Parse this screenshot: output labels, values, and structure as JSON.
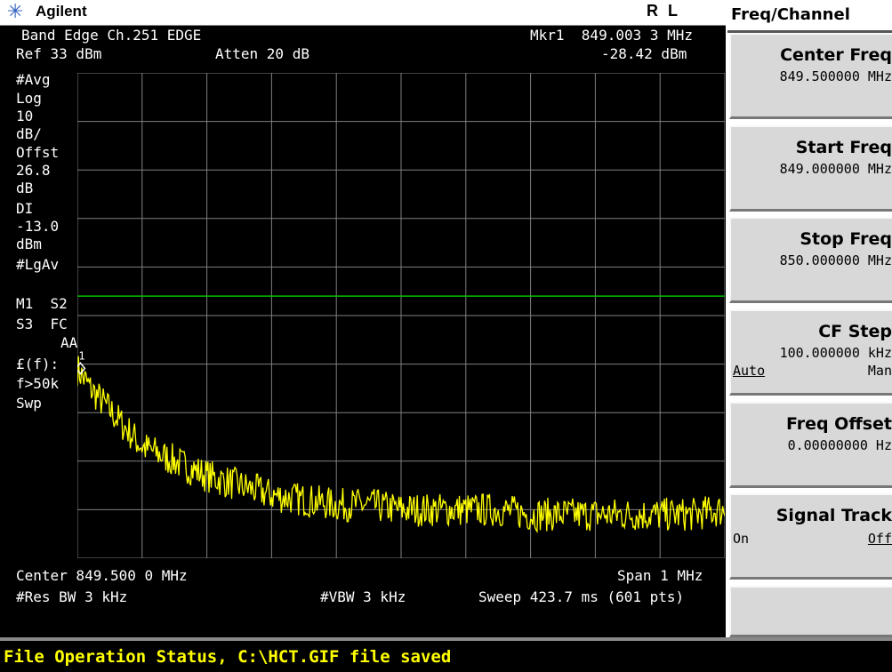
{
  "titlebar": {
    "logo_icon": "agilent-spark-icon",
    "brand": "Agilent",
    "mode": "R L"
  },
  "screen": {
    "title": "Band Edge Ch.251 EDGE",
    "marker_label": "Mkr1  849.003 3 MHz",
    "ref": "Ref 33 dBm",
    "atten": "Atten 20 dB",
    "marker_amp": "-28.42 dBm",
    "left_annotations": [
      "#Avg",
      "Log",
      "10",
      "dB/",
      "Offst",
      "26.8",
      "dB",
      "DI",
      "-13.0",
      "dBm",
      "#LgAv",
      "M1  S2",
      "S3  FC",
      "AA",
      "£(f):",
      "f>50k",
      "Swp"
    ],
    "center": "Center 849.500 0 MHz",
    "span": "Span 1 MHz",
    "res_bw": "#Res BW 3 kHz",
    "vbw": "#VBW 3 kHz",
    "sweep": "Sweep 423.7 ms (601 pts)",
    "marker_number": "1"
  },
  "softkeys": {
    "title": "Freq/Channel",
    "keys": [
      {
        "label": "Center Freq",
        "value": "849.500000 MHz"
      },
      {
        "label": "Start Freq",
        "value": "849.000000 MHz"
      },
      {
        "label": "Stop Freq",
        "value": "850.000000 MHz"
      },
      {
        "label": "CF Step",
        "value": "100.000000 kHz",
        "opt_left": "Auto",
        "opt_right": "Man"
      },
      {
        "label": "Freq Offset",
        "value": "0.00000000  Hz"
      },
      {
        "label": "Signal Track",
        "opt_left": "On",
        "opt_right": "Off"
      }
    ]
  },
  "status": {
    "message": "File Operation Status, C:\\HCT.GIF file saved"
  },
  "colors": {
    "trace": "#ffff00",
    "display_line": "#00c000",
    "grid": "#808080"
  },
  "chart_data": {
    "type": "line",
    "x_start_mhz": 849.0,
    "x_stop_mhz": 850.0,
    "ref_level_dbm": 33,
    "scale_db_per_div": 10,
    "display_line_dbm": -13.0,
    "marker": {
      "freq_mhz": 849.0033,
      "amp_dbm": -28.42
    },
    "trace_profile_dbm": [
      [
        849.0,
        -28
      ],
      [
        849.02,
        -32
      ],
      [
        849.04,
        -35
      ],
      [
        849.06,
        -38
      ],
      [
        849.08,
        -41
      ],
      [
        849.1,
        -44
      ],
      [
        849.15,
        -47
      ],
      [
        849.2,
        -50
      ],
      [
        849.25,
        -52
      ],
      [
        849.3,
        -54
      ],
      [
        849.35,
        -55
      ],
      [
        849.4,
        -56
      ],
      [
        849.45,
        -56
      ],
      [
        849.5,
        -57
      ],
      [
        849.55,
        -57
      ],
      [
        849.6,
        -57
      ],
      [
        849.65,
        -57
      ],
      [
        849.7,
        -58
      ],
      [
        849.75,
        -58
      ],
      [
        849.8,
        -58
      ],
      [
        849.85,
        -58
      ],
      [
        849.9,
        -58
      ],
      [
        849.95,
        -58
      ],
      [
        850.0,
        -57
      ]
    ]
  }
}
